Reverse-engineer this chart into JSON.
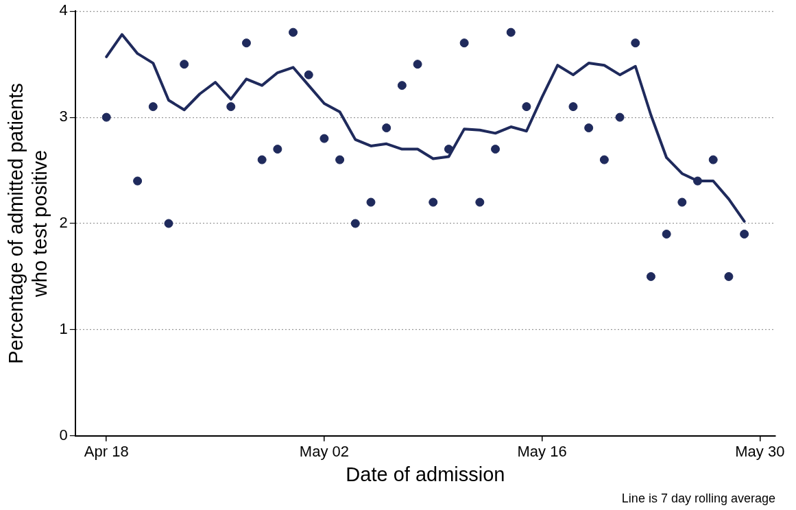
{
  "chart_data": {
    "type": "scatter",
    "xlabel": "Date of admission",
    "ylabel": "Percentage of admitted patients\nwho test positive",
    "x": [
      "--04-18",
      "--04-19",
      "--04-20",
      "--04-21",
      "--04-22",
      "--04-23",
      "--04-24",
      "--04-25",
      "--04-26",
      "--04-27",
      "--04-28",
      "--04-29",
      "--04-30",
      "--05-01",
      "--05-02",
      "--05-03",
      "--05-04",
      "--05-05",
      "--05-06",
      "--05-07",
      "--05-08",
      "--05-09",
      "--05-10",
      "--05-11",
      "--05-12",
      "--05-13",
      "--05-14",
      "--05-15",
      "--05-16",
      "--05-17",
      "--05-18",
      "--05-19",
      "--05-20",
      "--05-21",
      "--05-22",
      "--05-23",
      "--05-24",
      "--05-25",
      "--05-26",
      "--05-27",
      "--05-28",
      "--05-29"
    ],
    "series": [
      {
        "color": "#1f2a5c",
        "marker": "circle",
        "values": [
          3.0,
          null,
          2.4,
          3.1,
          2.0,
          3.5,
          null,
          null,
          3.1,
          3.7,
          2.6,
          2.7,
          3.8,
          3.4,
          2.8,
          2.6,
          2.0,
          2.2,
          2.9,
          3.3,
          3.5,
          2.2,
          2.7,
          3.7,
          2.2,
          2.7,
          3.8,
          3.1,
          null,
          null,
          3.1,
          2.9,
          2.6,
          3.0,
          3.7,
          1.5,
          1.9,
          2.2,
          2.4,
          2.6,
          1.5,
          1.9
        ]
      },
      {
        "type": "line",
        "color": "#1f2a5c",
        "marker": "none",
        "line_style": "solid",
        "values": [
          3.57,
          3.78,
          3.6,
          3.51,
          3.16,
          3.07,
          3.22,
          3.33,
          3.17,
          3.36,
          3.3,
          3.42,
          3.47,
          3.3,
          3.13,
          3.05,
          2.79,
          2.73,
          2.75,
          2.7,
          2.7,
          2.61,
          2.63,
          2.89,
          2.88,
          2.85,
          2.91,
          2.87,
          3.19,
          3.49,
          3.4,
          3.51,
          3.49,
          3.4,
          3.48,
          3.02,
          2.62,
          2.47,
          2.4,
          2.4,
          2.23,
          2.02
        ]
      }
    ],
    "xlim": [
      "--04-16",
      "--05-31"
    ],
    "xticks": [
      {
        "value": "--04-18",
        "label": "Apr 18"
      },
      {
        "value": "--05-02",
        "label": "May 02"
      },
      {
        "value": "--05-16",
        "label": "May 16"
      },
      {
        "value": "--05-30",
        "label": "May 30"
      }
    ],
    "ylim": [
      0,
      4
    ],
    "yticks": [
      0,
      1,
      2,
      3,
      4
    ],
    "grid": "y",
    "legend": false,
    "annotations": [
      "Line is 7 day rolling average"
    ]
  }
}
